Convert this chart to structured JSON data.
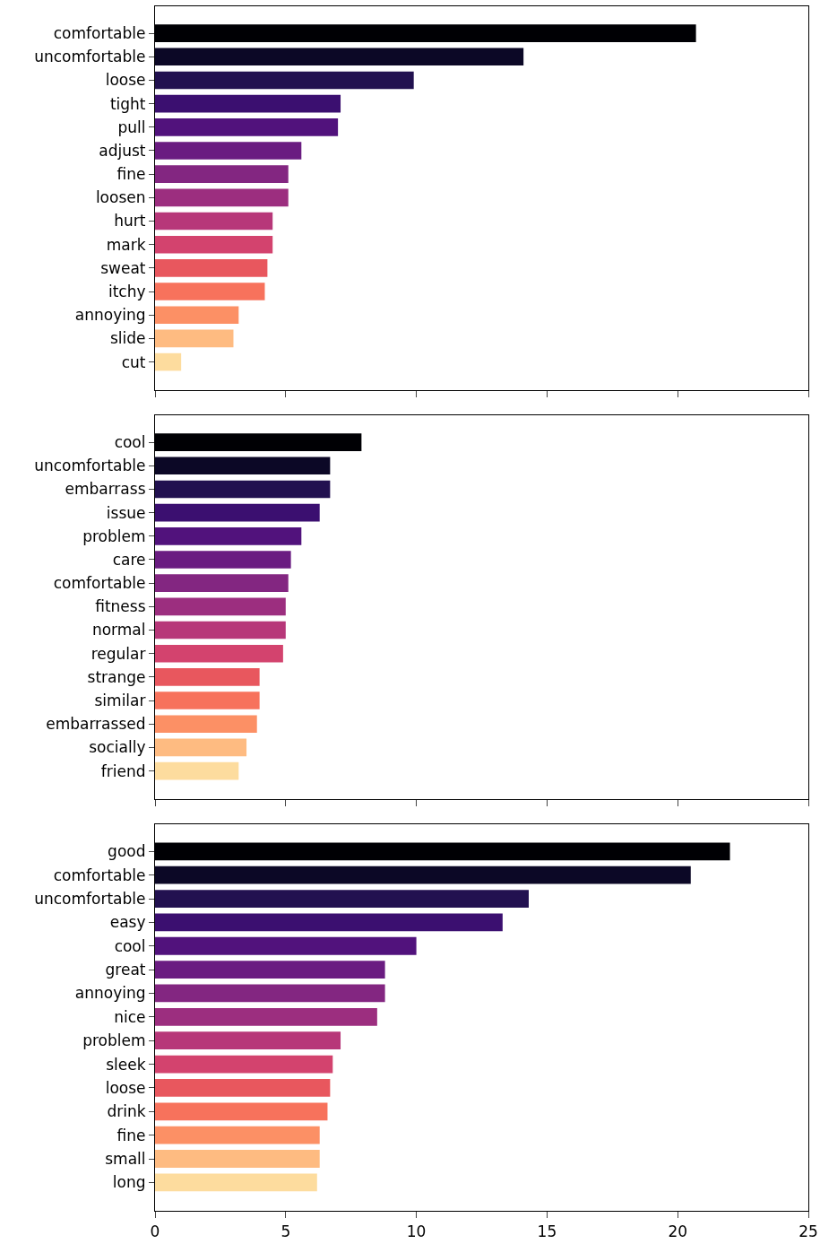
{
  "chart_data": [
    {
      "type": "bar",
      "orientation": "horizontal",
      "categories": [
        "comfortable",
        "uncomfortable",
        "loose",
        "tight",
        "pull",
        "adjust",
        "fine",
        "loosen",
        "hurt",
        "mark",
        "sweat",
        "itchy",
        "annoying",
        "slide",
        "cut"
      ],
      "values": [
        20.7,
        14.1,
        9.9,
        7.1,
        7.0,
        5.6,
        5.1,
        5.1,
        4.5,
        4.5,
        4.3,
        4.2,
        3.2,
        3.0,
        1.0
      ],
      "colors": [
        "#000004",
        "#0c0826",
        "#221150",
        "#3b0f70",
        "#51127c",
        "#6a1c81",
        "#832681",
        "#9c2e7f",
        "#b73779",
        "#d3436e",
        "#e8575e",
        "#f7725c",
        "#fc9065",
        "#febb81",
        "#fddc9e"
      ],
      "xlim": [
        0,
        25
      ],
      "xticks": [
        0,
        5,
        10,
        15,
        20,
        25
      ],
      "tick_labels": "y"
    },
    {
      "type": "bar",
      "orientation": "horizontal",
      "categories": [
        "cool",
        "uncomfortable",
        "embarrass",
        "issue",
        "problem",
        "care",
        "comfortable",
        "fitness",
        "normal",
        "regular",
        "strange",
        "similar",
        "embarrassed",
        "socially",
        "friend"
      ],
      "values": [
        7.9,
        6.7,
        6.7,
        6.3,
        5.6,
        5.2,
        5.1,
        5.0,
        5.0,
        4.9,
        4.0,
        4.0,
        3.9,
        3.5,
        3.2
      ],
      "colors": [
        "#000004",
        "#0c0826",
        "#221150",
        "#3b0f70",
        "#51127c",
        "#6a1c81",
        "#832681",
        "#9c2e7f",
        "#b73779",
        "#d3436e",
        "#e8575e",
        "#f7725c",
        "#fc9065",
        "#febb81",
        "#fddc9e"
      ],
      "xlim": [
        0,
        25
      ],
      "xticks": [
        0,
        5,
        10,
        15,
        20,
        25
      ],
      "tick_labels": "y"
    },
    {
      "type": "bar",
      "orientation": "horizontal",
      "categories": [
        "good",
        "comfortable",
        "uncomfortable",
        "easy",
        "cool",
        "great",
        "annoying",
        "nice",
        "problem",
        "sleek",
        "loose",
        "drink",
        "fine",
        "small",
        "long"
      ],
      "values": [
        22.0,
        20.5,
        14.3,
        13.3,
        10.0,
        8.8,
        8.8,
        8.5,
        7.1,
        6.8,
        6.7,
        6.6,
        6.3,
        6.3,
        6.2
      ],
      "colors": [
        "#000004",
        "#0c0826",
        "#221150",
        "#3b0f70",
        "#51127c",
        "#6a1c81",
        "#832681",
        "#9c2e7f",
        "#b73779",
        "#d3436e",
        "#e8575e",
        "#f7725c",
        "#fc9065",
        "#febb81",
        "#fddc9e"
      ],
      "xlim": [
        0,
        25
      ],
      "xticks": [
        0,
        5,
        10,
        15,
        20,
        25
      ]
    }
  ]
}
